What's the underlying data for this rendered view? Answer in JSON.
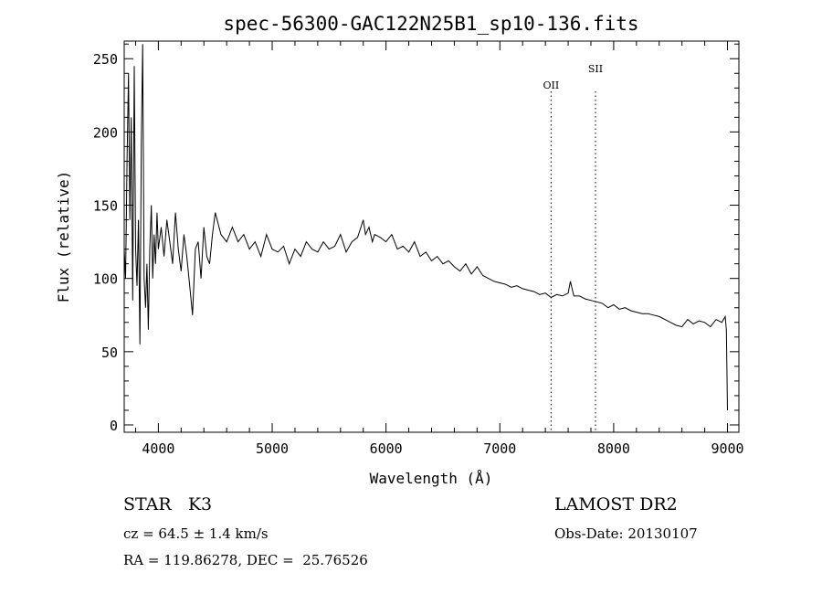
{
  "chart_data": {
    "type": "line",
    "title": "spec-56300-GAC122N25B1_sp10-136.fits",
    "xlabel": "Wavelength (Å)",
    "ylabel": "Flux (relative)",
    "xlim": [
      3700,
      9100
    ],
    "ylim": [
      -5,
      262
    ],
    "xticks": [
      4000,
      5000,
      6000,
      7000,
      8000,
      9000
    ],
    "xtick_labels": [
      "4000",
      "5000",
      "6000",
      "7000",
      "8000",
      "9000"
    ],
    "yticks": [
      0,
      50,
      100,
      150,
      200,
      250
    ],
    "ytick_labels": [
      "0",
      "50",
      "100",
      "150",
      "200",
      "250"
    ],
    "grid": false,
    "lines": [
      {
        "label": "OII",
        "x": 7450
      },
      {
        "label": "SII",
        "x": 7840
      }
    ],
    "series": [
      {
        "x": [
          3700,
          3712,
          3725,
          3738,
          3750,
          3762,
          3775,
          3788,
          3800,
          3812,
          3825,
          3838,
          3850,
          3862,
          3875,
          3888,
          3900,
          3912,
          3925,
          3938,
          3950,
          3962,
          3975,
          3988,
          4000,
          4025,
          4050,
          4075,
          4100,
          4125,
          4150,
          4175,
          4200,
          4225,
          4250,
          4275,
          4300,
          4325,
          4350,
          4375,
          4400,
          4425,
          4450,
          4475,
          4500,
          4550,
          4600,
          4650,
          4700,
          4750,
          4800,
          4850,
          4900,
          4950,
          5000,
          5050,
          5100,
          5150,
          5200,
          5250,
          5300,
          5350,
          5400,
          5450,
          5500,
          5550,
          5600,
          5650,
          5700,
          5750,
          5780,
          5800,
          5820,
          5850,
          5880,
          5900,
          5950,
          6000,
          6050,
          6100,
          6150,
          6200,
          6250,
          6300,
          6350,
          6400,
          6450,
          6500,
          6550,
          6600,
          6650,
          6700,
          6750,
          6800,
          6850,
          6900,
          6950,
          7000,
          7050,
          7100,
          7150,
          7200,
          7250,
          7300,
          7350,
          7400,
          7450,
          7500,
          7550,
          7600,
          7620,
          7650,
          7700,
          7750,
          7800,
          7850,
          7900,
          7950,
          8000,
          8050,
          8100,
          8150,
          8200,
          8250,
          8300,
          8350,
          8400,
          8450,
          8500,
          8550,
          8600,
          8650,
          8700,
          8750,
          8800,
          8850,
          8900,
          8950,
          8980,
          8990,
          9000
        ],
        "values": [
          120,
          100,
          180,
          240,
          140,
          210,
          85,
          245,
          120,
          95,
          140,
          55,
          190,
          260,
          100,
          80,
          110,
          65,
          120,
          150,
          100,
          130,
          110,
          145,
          120,
          135,
          115,
          140,
          125,
          110,
          145,
          120,
          105,
          130,
          115,
          95,
          75,
          120,
          125,
          100,
          135,
          115,
          110,
          130,
          145,
          130,
          125,
          135,
          125,
          130,
          120,
          125,
          115,
          130,
          120,
          118,
          122,
          110,
          120,
          115,
          125,
          120,
          118,
          125,
          120,
          122,
          130,
          118,
          125,
          128,
          135,
          140,
          130,
          135,
          125,
          130,
          128,
          125,
          130,
          120,
          122,
          118,
          125,
          115,
          118,
          112,
          115,
          110,
          112,
          108,
          105,
          110,
          103,
          108,
          102,
          100,
          98,
          97,
          96,
          94,
          95,
          93,
          92,
          91,
          89,
          90,
          87,
          89,
          88,
          90,
          98,
          88,
          88,
          86,
          85,
          84,
          83,
          80,
          82,
          79,
          80,
          78,
          77,
          76,
          76,
          75,
          74,
          72,
          70,
          68,
          67,
          72,
          69,
          71,
          70,
          67,
          72,
          70,
          74,
          65,
          10
        ]
      }
    ]
  },
  "info": {
    "class": "STAR",
    "subclass": "K3",
    "cz": "cz = 64.5 ± 1.4 km/s",
    "coords": "RA = 119.86278, DEC =  25.76526",
    "survey": "LAMOST DR2",
    "obs_date": "Obs-Date: 20130107"
  }
}
